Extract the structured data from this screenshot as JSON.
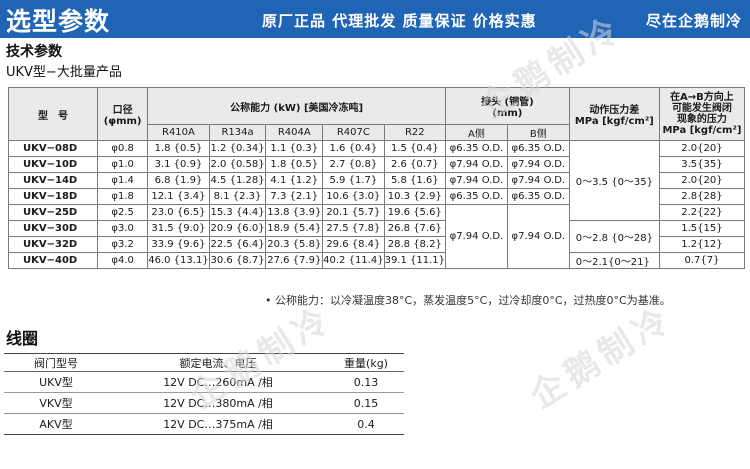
{
  "banner": {
    "title": "选型参数",
    "slogan": "原厂正品  代理批发  质量保证  价格实惠",
    "shop": "尽在企鹅制冷"
  },
  "section_title": "技术参数",
  "sub_title": "UKV型−大批量产品",
  "spec_table": {
    "headers": {
      "model": "型　号",
      "port": "口径\n(φmm)",
      "capacity": "公称能力 (kW) [美国冷冻吨]",
      "connection": "接头 (铜管)\n(mm)",
      "pressure": "动作压力差\nMPa [kgf/cm²]",
      "reverse": "在A→B方向上\n可能发生阀闭\n现象的压力\nMPa [kgf/cm²]",
      "refrigerants": [
        "R410A",
        "R134a",
        "R404A",
        "R407C",
        "R22"
      ],
      "sides": [
        "A侧",
        "B侧"
      ]
    },
    "rows": [
      {
        "model": "UKV−08D",
        "port": "φ0.8",
        "cap": [
          "1.8 {0.5}",
          "1.2 {0.34}",
          "1.1 {0.3}",
          "1.6 {0.4}",
          "1.5 {0.4}"
        ],
        "a": "φ6.35 O.D.",
        "b": "φ6.35 O.D.",
        "rev": "2.0{20}"
      },
      {
        "model": "UKV−10D",
        "port": "φ1.0",
        "cap": [
          "3.1 {0.9}",
          "2.0 {0.58}",
          "1.8 {0.5}",
          "2.7 {0.8}",
          "2.6 {0.7}"
        ],
        "a": "φ7.94 O.D.",
        "b": "φ7.94 O.D.",
        "rev": "3.5{35}"
      },
      {
        "model": "UKV−14D",
        "port": "φ1.4",
        "cap": [
          "6.8 {1.9}",
          "4.5 {1.28}",
          "4.1 {1.2}",
          "5.9 {1.7}",
          "5.8 {1.6}"
        ],
        "a": "φ7.94 O.D.",
        "b": "φ7.94 O.D.",
        "rev": "2.0{20}"
      },
      {
        "model": "UKV−18D",
        "port": "φ1.8",
        "cap": [
          "12.1 {3.4}",
          "8.1 {2.3}",
          "7.3 {2.1}",
          "10.6 {3.0}",
          "10.3 {2.9}"
        ],
        "a": "φ6.35 O.D.",
        "b": "φ6.35 O.D.",
        "rev": "2.8{28}"
      },
      {
        "model": "UKV−25D",
        "port": "φ2.5",
        "cap": [
          "23.0 {6.5}",
          "15.3 {4.4}",
          "13.8 {3.9}",
          "20.1 {5.7}",
          "19.6 {5.6}"
        ],
        "rev": "2.2{22}"
      },
      {
        "model": "UKV−30D",
        "port": "φ3.0",
        "cap": [
          "31.5 {9.0}",
          "20.9 {6.0}",
          "18.9 {5.4}",
          "27.5 {7.8}",
          "26.8 {7.6}"
        ],
        "rev": "1.5{15}"
      },
      {
        "model": "UKV−32D",
        "port": "φ3.2",
        "cap": [
          "33.9 {9.6}",
          "22.5 {6.4}",
          "20.3 {5.8}",
          "29.6 {8.4}",
          "28.8 {8.2}"
        ],
        "rev": "1.2{12}"
      },
      {
        "model": "UKV−40D",
        "port": "φ4.0",
        "cap": [
          "46.0 {13.1}",
          "30.6 {8.7}",
          "27.6 {7.9}",
          "40.2 {11.4}",
          "39.1 {11.1}"
        ],
        "rev": "0.7{7}"
      }
    ],
    "merged": {
      "conn_a_lower": "φ7.94 O.D.",
      "conn_b_lower": "φ7.94 O.D.",
      "pressure_1": "0～3.5 {0～35}",
      "pressure_2": "0～2.8 {0～28}",
      "pressure_3": "0～2.1{0～21}"
    }
  },
  "note": "• 公称能力：以冷凝温度38°C，蒸发温度5°C，过冷却度0°C，过热度0°C为基准。",
  "coil_title": "线圈",
  "coil_table": {
    "headers": [
      "阀门型号",
      "额定电流、电压",
      "重量(kg)"
    ],
    "rows": [
      [
        "UKV型",
        "12V DC…260mA /相",
        "0.13"
      ],
      [
        "VKV型",
        "12V DC…380mA /相",
        "0.15"
      ],
      [
        "AKV型",
        "12V DC…375mA /相",
        "0.4"
      ]
    ]
  },
  "watermark": "企鹅制冷"
}
